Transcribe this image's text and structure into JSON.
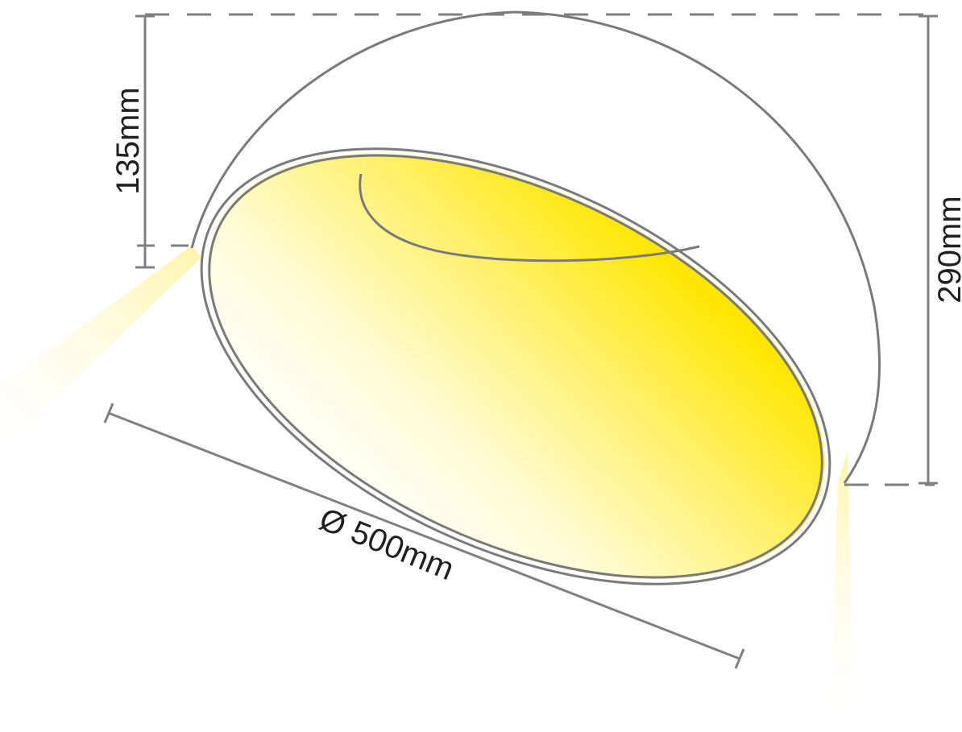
{
  "dimensions": {
    "inner_depth": "135mm",
    "total_height": "290mm",
    "diameter": "Ø 500mm"
  },
  "colors": {
    "outline": "#7a7a7a",
    "dimension_line": "#808080",
    "light_glow": "#fff6a8",
    "inner_yellow": "#ffe600",
    "text": "#231f20"
  }
}
